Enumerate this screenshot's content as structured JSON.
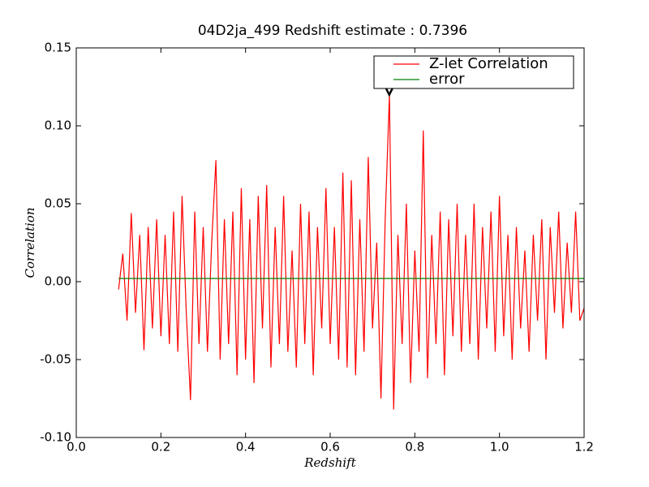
{
  "chart_data": {
    "type": "line",
    "title": "04D2ja_499 Redshift estimate : 0.7396",
    "xlabel": "Redshift",
    "ylabel": "Correlation",
    "x": [
      0.1,
      0.11,
      0.12,
      0.13,
      0.14,
      0.15,
      0.16,
      0.17,
      0.18,
      0.19,
      0.2,
      0.21,
      0.22,
      0.23,
      0.24,
      0.25,
      0.26,
      0.27,
      0.28,
      0.29,
      0.3,
      0.31,
      0.32,
      0.33,
      0.34,
      0.35,
      0.36,
      0.37,
      0.38,
      0.39,
      0.4,
      0.41,
      0.42,
      0.43,
      0.44,
      0.45,
      0.46,
      0.47,
      0.48,
      0.49,
      0.5,
      0.51,
      0.52,
      0.53,
      0.54,
      0.55,
      0.56,
      0.57,
      0.58,
      0.59,
      0.6,
      0.61,
      0.62,
      0.63,
      0.64,
      0.65,
      0.66,
      0.67,
      0.68,
      0.69,
      0.7,
      0.71,
      0.72,
      0.73,
      0.74,
      0.75,
      0.76,
      0.77,
      0.78,
      0.79,
      0.8,
      0.81,
      0.82,
      0.83,
      0.84,
      0.85,
      0.86,
      0.87,
      0.88,
      0.89,
      0.9,
      0.91,
      0.92,
      0.93,
      0.94,
      0.95,
      0.96,
      0.97,
      0.98,
      0.99,
      1.0,
      1.01,
      1.02,
      1.03,
      1.04,
      1.05,
      1.06,
      1.07,
      1.08,
      1.09,
      1.1,
      1.11,
      1.12,
      1.13,
      1.14,
      1.15,
      1.16,
      1.17,
      1.18,
      1.19,
      1.2
    ],
    "series": [
      {
        "name": "Z-let Correlation",
        "color": "#ff0000",
        "values": [
          -0.005,
          0.018,
          -0.025,
          0.044,
          -0.02,
          0.03,
          -0.044,
          0.035,
          -0.03,
          0.04,
          -0.035,
          0.03,
          -0.04,
          0.045,
          -0.045,
          0.055,
          -0.02,
          -0.076,
          0.045,
          -0.04,
          0.035,
          -0.045,
          0.025,
          0.078,
          -0.05,
          0.04,
          -0.04,
          0.045,
          -0.06,
          0.06,
          -0.05,
          0.04,
          -0.065,
          0.055,
          -0.03,
          0.062,
          -0.055,
          0.035,
          -0.04,
          0.055,
          -0.045,
          0.02,
          -0.055,
          0.05,
          -0.04,
          0.045,
          -0.06,
          0.035,
          -0.03,
          0.06,
          -0.04,
          0.035,
          -0.05,
          0.07,
          -0.055,
          0.065,
          -0.06,
          0.04,
          -0.045,
          0.08,
          -0.03,
          0.025,
          -0.075,
          0.04,
          0.12,
          -0.082,
          0.03,
          -0.04,
          0.05,
          -0.065,
          0.02,
          -0.045,
          0.097,
          -0.062,
          0.03,
          -0.04,
          0.045,
          -0.06,
          0.04,
          -0.035,
          0.05,
          -0.045,
          0.03,
          -0.04,
          0.05,
          -0.05,
          0.035,
          -0.03,
          0.045,
          -0.045,
          0.055,
          -0.035,
          0.03,
          -0.05,
          0.035,
          -0.03,
          0.02,
          -0.045,
          0.03,
          -0.025,
          0.04,
          -0.05,
          0.035,
          -0.02,
          0.045,
          -0.03,
          0.025,
          -0.02,
          0.045,
          -0.025,
          -0.017
        ]
      },
      {
        "name": "error",
        "color": "#008000",
        "values": [
          0.002,
          0.002,
          0.002,
          0.002,
          0.002,
          0.002,
          0.002,
          0.002,
          0.002,
          0.002,
          0.002,
          0.002,
          0.002,
          0.002,
          0.002,
          0.002,
          0.002,
          0.002,
          0.002,
          0.002,
          0.002,
          0.002,
          0.002,
          0.002,
          0.002,
          0.002,
          0.002,
          0.002,
          0.002,
          0.002,
          0.002,
          0.002,
          0.002,
          0.002,
          0.002,
          0.002,
          0.002,
          0.002,
          0.002,
          0.002,
          0.002,
          0.002,
          0.002,
          0.002,
          0.002,
          0.002,
          0.002,
          0.002,
          0.002,
          0.002,
          0.002,
          0.002,
          0.002,
          0.002,
          0.002,
          0.002,
          0.002,
          0.002,
          0.002,
          0.002,
          0.002,
          0.002,
          0.002,
          0.002,
          0.002,
          0.002,
          0.002,
          0.002,
          0.002,
          0.002,
          0.002,
          0.002,
          0.002,
          0.002,
          0.002,
          0.002,
          0.002,
          0.002,
          0.002,
          0.002,
          0.002,
          0.002,
          0.002,
          0.002,
          0.002,
          0.002,
          0.002,
          0.002,
          0.002,
          0.002,
          0.002,
          0.002,
          0.002,
          0.002,
          0.002,
          0.002,
          0.002,
          0.002,
          0.002,
          0.002,
          0.002,
          0.002,
          0.002,
          0.002,
          0.002,
          0.002,
          0.002,
          0.002,
          0.002,
          0.002,
          0.002
        ]
      }
    ],
    "peak_marker": {
      "x": 0.7396,
      "y": 0.122
    },
    "xlim": [
      0.0,
      1.2
    ],
    "ylim": [
      -0.1,
      0.15
    ],
    "xticks": [
      {
        "value": 0.0,
        "label": "0.0"
      },
      0.2,
      0.4,
      0.6,
      0.8,
      {
        "value": 1.0,
        "label": "1.0"
      },
      1.2
    ],
    "yticks": [
      {
        "value": -0.1,
        "label": "-0.10"
      },
      -0.05,
      {
        "value": 0.0,
        "label": "0.00"
      },
      0.05,
      {
        "value": 0.1,
        "label": "0.10"
      },
      0.15
    ],
    "grid": false,
    "legend": "upper right"
  }
}
